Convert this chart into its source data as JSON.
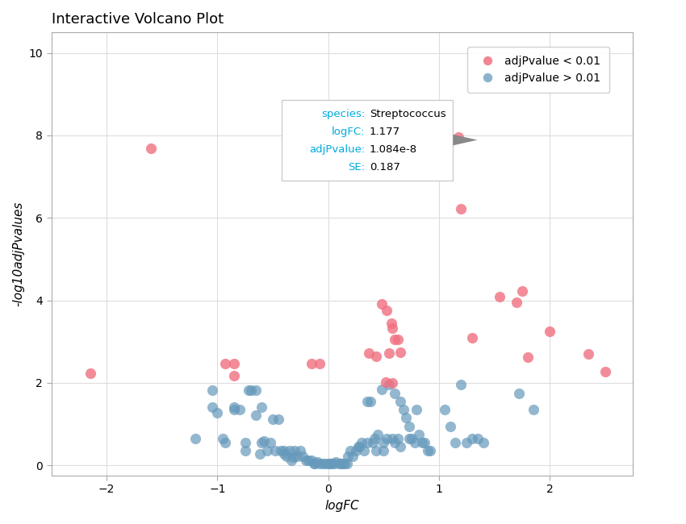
{
  "title": "Interactive Volcano Plot",
  "xlabel": "logFC",
  "ylabel": "-log10adjPvalues",
  "xlim": [
    -2.5,
    2.75
  ],
  "ylim": [
    -0.25,
    10.5
  ],
  "xticks": [
    -2,
    -1,
    0,
    1,
    2
  ],
  "yticks": [
    0,
    2,
    4,
    6,
    8,
    10
  ],
  "pink_color": "#F07080",
  "blue_color": "#6699BB",
  "tooltip": {
    "lines": [
      [
        "species:",
        "Streptococcus"
      ],
      [
        "logFC:",
        "1.177"
      ],
      [
        "adjPvalue:",
        "1.084e-8"
      ],
      [
        "SE:",
        "0.187"
      ]
    ],
    "point_x": 1.177,
    "point_y": 7.965
  },
  "pink_points": [
    [
      -2.15,
      2.23
    ],
    [
      -1.6,
      7.68
    ],
    [
      -0.93,
      2.47
    ],
    [
      -0.85,
      2.47
    ],
    [
      -0.85,
      2.18
    ],
    [
      -0.15,
      2.47
    ],
    [
      -0.08,
      2.47
    ],
    [
      0.37,
      2.73
    ],
    [
      0.43,
      2.65
    ],
    [
      0.48,
      3.92
    ],
    [
      0.53,
      3.75
    ],
    [
      0.57,
      3.45
    ],
    [
      0.58,
      3.32
    ],
    [
      0.6,
      3.05
    ],
    [
      0.63,
      3.05
    ],
    [
      0.55,
      2.73
    ],
    [
      0.65,
      2.75
    ],
    [
      0.52,
      2.02
    ],
    [
      0.58,
      2.0
    ],
    [
      1.177,
      7.965
    ],
    [
      1.2,
      6.22
    ],
    [
      1.3,
      3.1
    ],
    [
      1.55,
      4.1
    ],
    [
      1.7,
      3.95
    ],
    [
      1.75,
      4.22
    ],
    [
      1.8,
      2.62
    ],
    [
      2.0,
      3.25
    ],
    [
      2.35,
      2.7
    ],
    [
      2.5,
      2.28
    ]
  ],
  "blue_points": [
    [
      -1.05,
      1.82
    ],
    [
      -1.05,
      1.42
    ],
    [
      -1.0,
      1.28
    ],
    [
      -1.2,
      0.65
    ],
    [
      -0.95,
      0.65
    ],
    [
      -0.93,
      0.55
    ],
    [
      -0.85,
      1.42
    ],
    [
      -0.85,
      1.35
    ],
    [
      -0.8,
      1.35
    ],
    [
      -0.75,
      0.35
    ],
    [
      -0.75,
      0.55
    ],
    [
      -0.72,
      1.82
    ],
    [
      -0.7,
      1.82
    ],
    [
      -0.65,
      1.82
    ],
    [
      -0.65,
      1.22
    ],
    [
      -0.62,
      0.27
    ],
    [
      -0.6,
      1.42
    ],
    [
      -0.6,
      0.55
    ],
    [
      -0.58,
      0.6
    ],
    [
      -0.55,
      0.35
    ],
    [
      -0.52,
      0.55
    ],
    [
      -0.5,
      1.12
    ],
    [
      -0.48,
      0.35
    ],
    [
      -0.45,
      1.12
    ],
    [
      -0.43,
      0.35
    ],
    [
      -0.4,
      0.35
    ],
    [
      -0.4,
      0.27
    ],
    [
      -0.38,
      0.22
    ],
    [
      -0.35,
      0.35
    ],
    [
      -0.33,
      0.12
    ],
    [
      -0.32,
      0.2
    ],
    [
      -0.3,
      0.35
    ],
    [
      -0.28,
      0.22
    ],
    [
      -0.25,
      0.35
    ],
    [
      -0.23,
      0.22
    ],
    [
      -0.2,
      0.12
    ],
    [
      -0.18,
      0.12
    ],
    [
      -0.15,
      0.12
    ],
    [
      -0.13,
      0.05
    ],
    [
      -0.12,
      0.05
    ],
    [
      -0.1,
      0.08
    ],
    [
      -0.08,
      0.05
    ],
    [
      -0.05,
      0.05
    ],
    [
      -0.03,
      0.05
    ],
    [
      0.0,
      0.05
    ],
    [
      0.02,
      0.05
    ],
    [
      0.03,
      0.05
    ],
    [
      0.05,
      0.05
    ],
    [
      0.07,
      0.08
    ],
    [
      0.1,
      0.05
    ],
    [
      0.12,
      0.05
    ],
    [
      0.13,
      0.05
    ],
    [
      0.15,
      0.05
    ],
    [
      0.17,
      0.05
    ],
    [
      0.18,
      0.22
    ],
    [
      0.2,
      0.35
    ],
    [
      0.22,
      0.22
    ],
    [
      0.25,
      0.35
    ],
    [
      0.27,
      0.45
    ],
    [
      0.28,
      0.45
    ],
    [
      0.3,
      0.55
    ],
    [
      0.32,
      0.35
    ],
    [
      0.35,
      0.55
    ],
    [
      0.35,
      1.55
    ],
    [
      0.38,
      1.55
    ],
    [
      0.4,
      0.55
    ],
    [
      0.42,
      0.65
    ],
    [
      0.43,
      0.35
    ],
    [
      0.45,
      0.75
    ],
    [
      0.48,
      1.85
    ],
    [
      0.5,
      0.55
    ],
    [
      0.5,
      0.35
    ],
    [
      0.53,
      0.65
    ],
    [
      0.55,
      1.95
    ],
    [
      0.58,
      0.65
    ],
    [
      0.6,
      1.75
    ],
    [
      0.6,
      0.55
    ],
    [
      0.63,
      0.65
    ],
    [
      0.65,
      1.55
    ],
    [
      0.65,
      0.45
    ],
    [
      0.68,
      1.35
    ],
    [
      0.7,
      1.15
    ],
    [
      0.73,
      0.95
    ],
    [
      0.73,
      0.65
    ],
    [
      0.75,
      0.65
    ],
    [
      0.78,
      0.55
    ],
    [
      0.8,
      1.35
    ],
    [
      0.82,
      0.75
    ],
    [
      0.85,
      0.55
    ],
    [
      0.87,
      0.55
    ],
    [
      0.9,
      0.35
    ],
    [
      0.92,
      0.35
    ],
    [
      1.05,
      1.35
    ],
    [
      1.1,
      0.95
    ],
    [
      1.15,
      0.55
    ],
    [
      1.2,
      1.95
    ],
    [
      1.25,
      0.55
    ],
    [
      1.3,
      0.65
    ],
    [
      1.35,
      0.65
    ],
    [
      1.4,
      0.55
    ],
    [
      1.72,
      1.75
    ],
    [
      1.85,
      1.35
    ]
  ]
}
